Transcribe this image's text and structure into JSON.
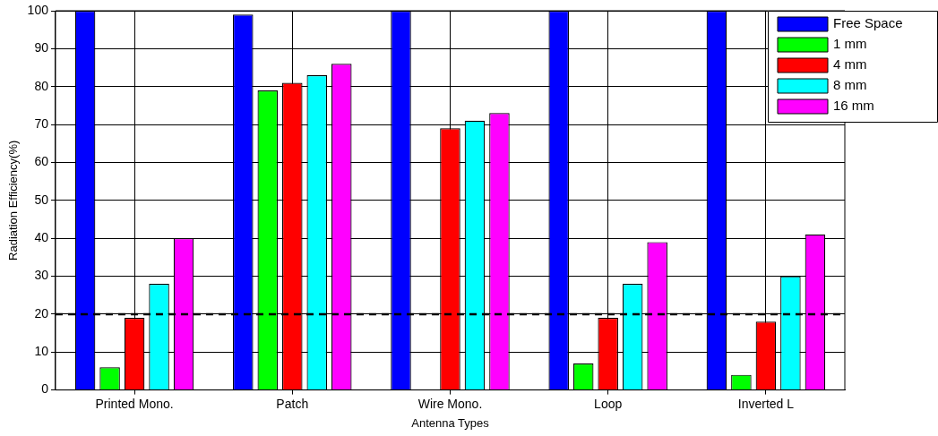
{
  "chart_data": {
    "type": "bar",
    "xlabel": "Antenna Types",
    "ylabel": "Radiation Efficiency(%)",
    "categories": [
      "Printed Mono.",
      "Patch",
      "Wire Mono.",
      "Loop",
      "Inverted L"
    ],
    "series": [
      {
        "name": "Free Space",
        "color": "#0000ff",
        "values": [
          100,
          99,
          100,
          100,
          100
        ]
      },
      {
        "name": "1 mm",
        "color": "#00ff00",
        "values": [
          6,
          79,
          null,
          7,
          4
        ]
      },
      {
        "name": "4 mm",
        "color": "#ff0000",
        "values": [
          19,
          81,
          69,
          19,
          18
        ]
      },
      {
        "name": "8 mm",
        "color": "#00ffff",
        "values": [
          28,
          83,
          71,
          28,
          30
        ]
      },
      {
        "name": "16 mm",
        "color": "#ff00ff",
        "values": [
          40,
          86,
          73,
          39,
          41
        ]
      }
    ],
    "ylim": [
      0,
      100
    ],
    "yticks": [
      0,
      10,
      20,
      30,
      40,
      50,
      60,
      70,
      80,
      90,
      100
    ],
    "ref_lines": [
      {
        "axis": "y",
        "value": 20,
        "color": "#000000",
        "line_style": "dashed"
      }
    ],
    "grid": true,
    "legend": "top right"
  }
}
